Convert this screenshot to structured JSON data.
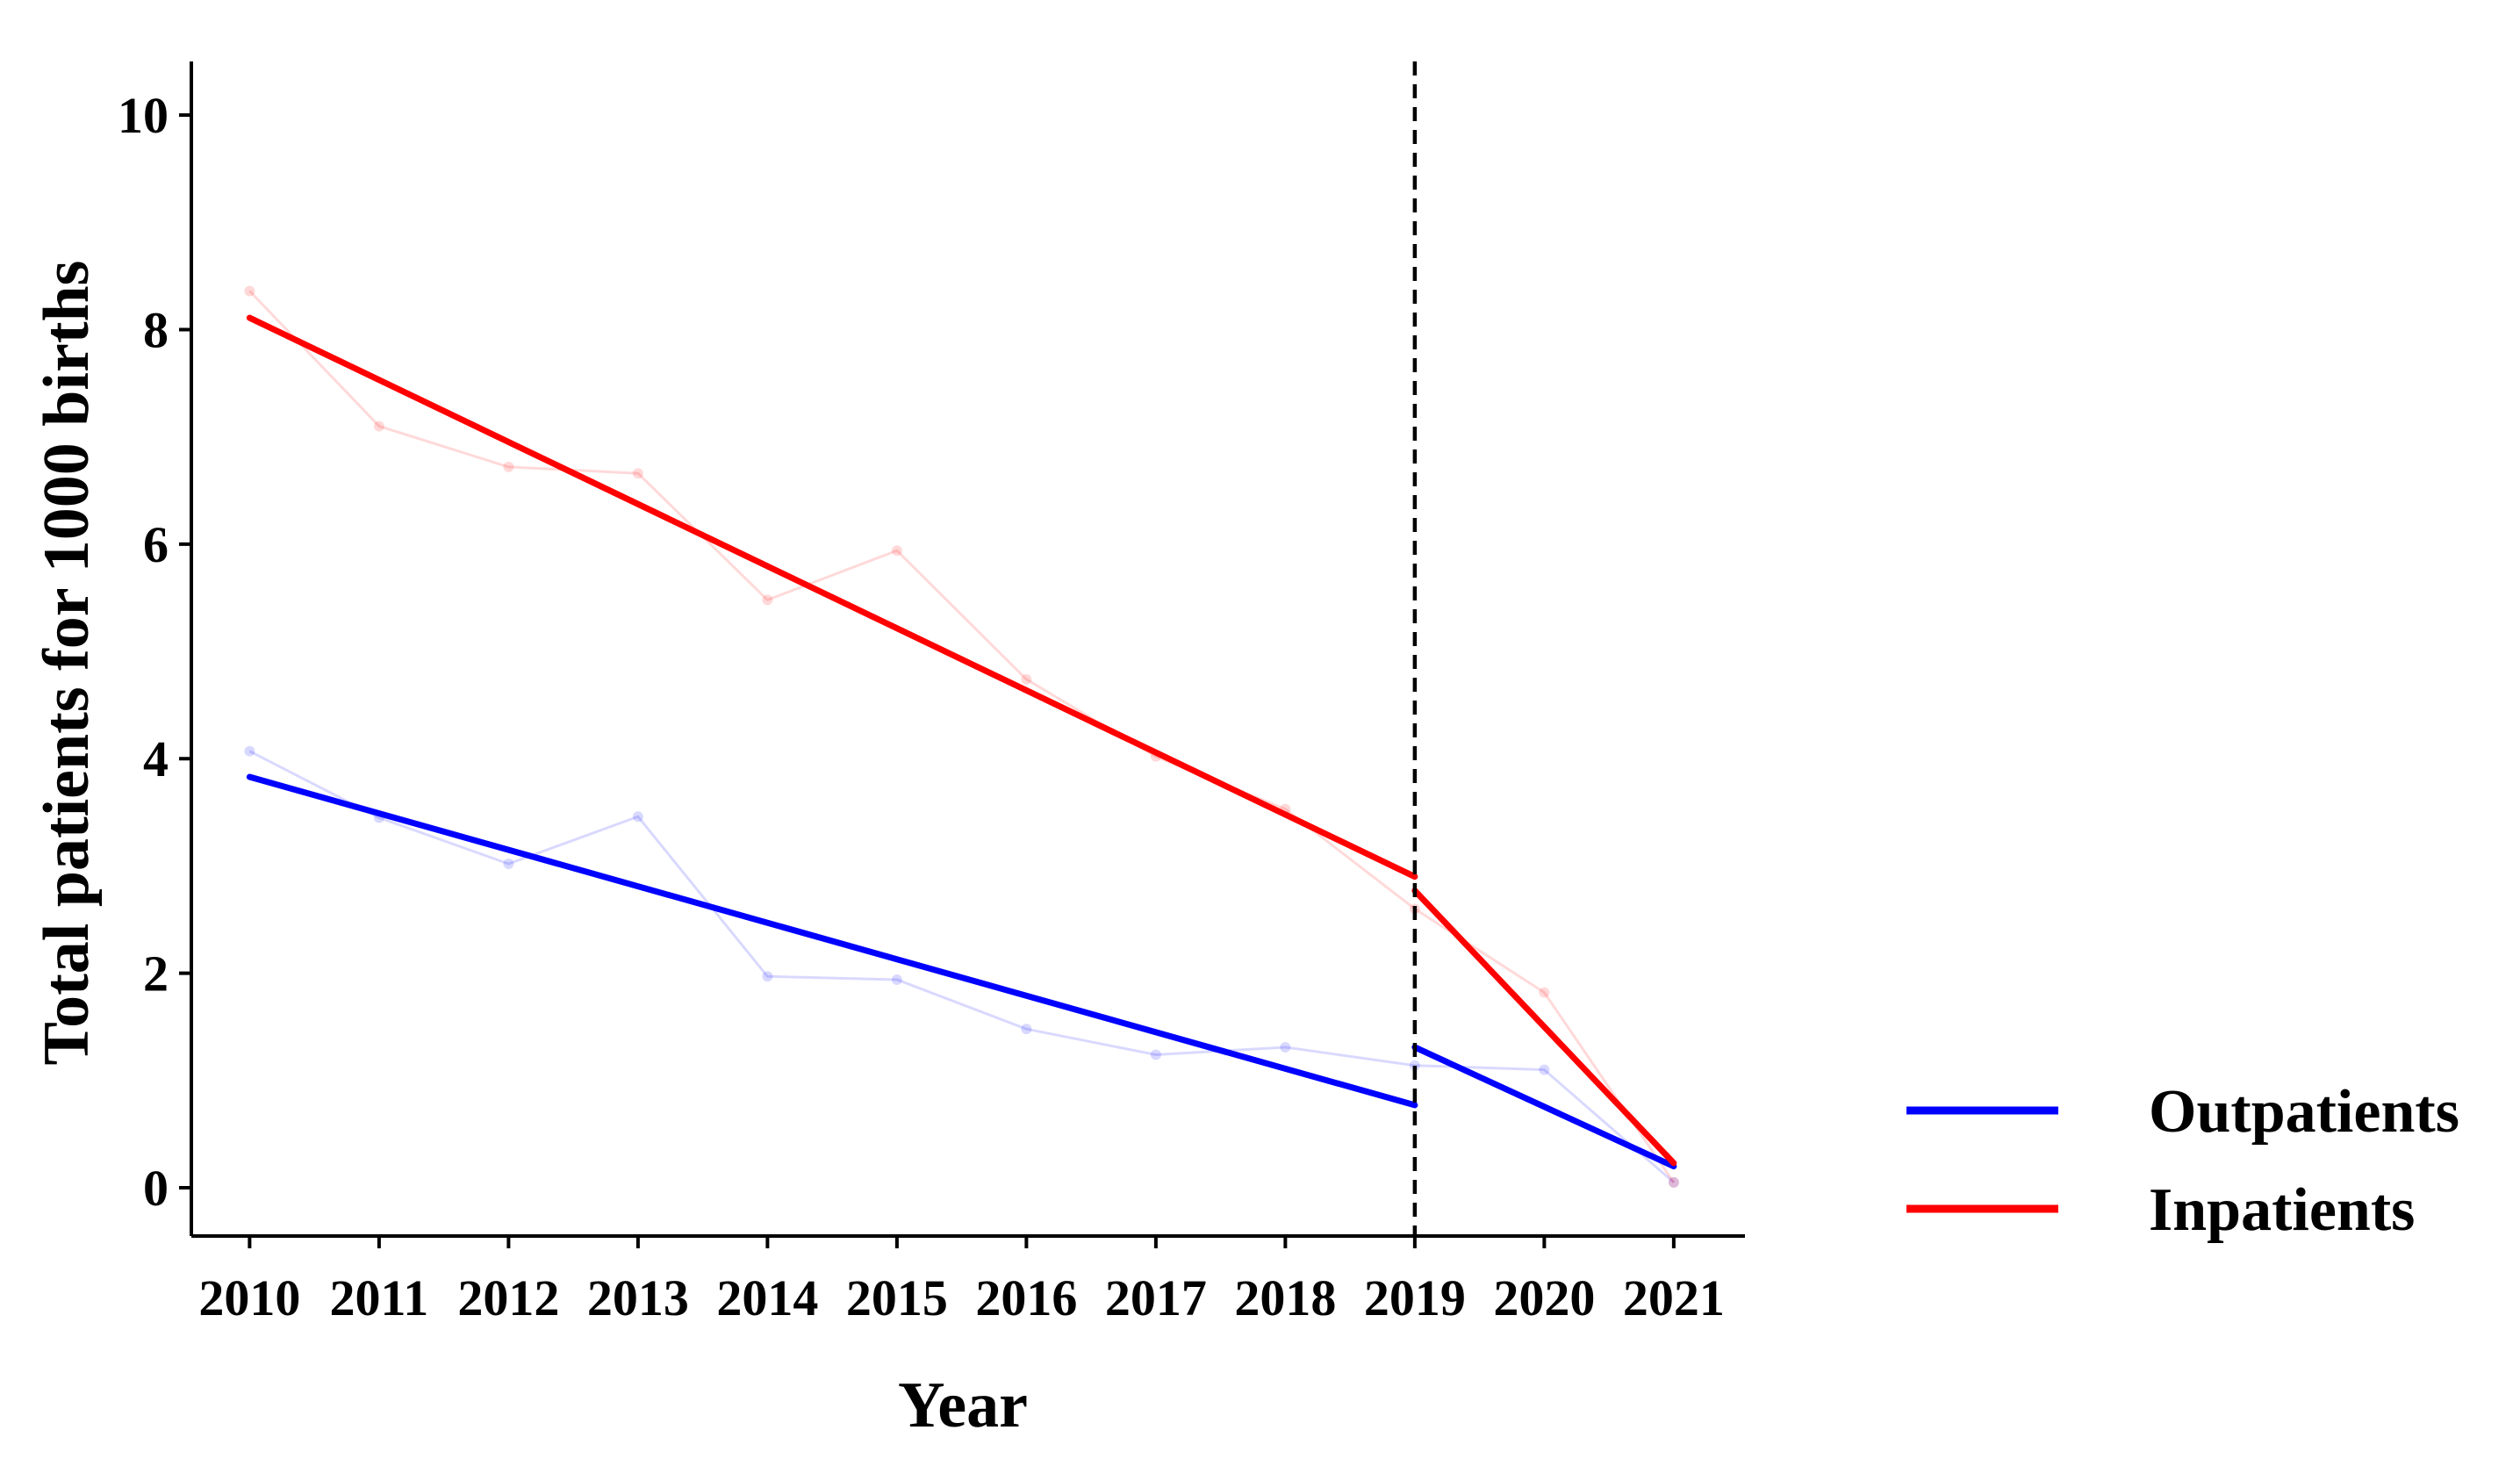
{
  "chart_data": {
    "type": "line",
    "xlabel": "Year",
    "ylabel": "Total patients for 1000 births",
    "x": [
      2010,
      2011,
      2012,
      2013,
      2014,
      2015,
      2016,
      2017,
      2018,
      2019,
      2020,
      2021
    ],
    "x_tick_labels": [
      "2010",
      "2011",
      "2012",
      "2013",
      "2014",
      "2015",
      "2016",
      "2017",
      "2018",
      "2019",
      "2020",
      "2021"
    ],
    "xlim": [
      2009.55,
      2021.55
    ],
    "ylim": [
      -0.45,
      10.5
    ],
    "y_ticks": [
      0,
      2,
      4,
      6,
      8,
      10
    ],
    "y_tick_labels": [
      "0",
      "2",
      "4",
      "6",
      "8",
      "10"
    ],
    "grid": false,
    "legend_position": "right",
    "intervention_line_x": 2019,
    "series": [
      {
        "name": "Outpatients",
        "color": "#0000ff",
        "observed": [
          4.07,
          3.45,
          3.02,
          3.46,
          1.97,
          1.94,
          1.48,
          1.24,
          1.31,
          1.14,
          1.1,
          0.05
        ],
        "trend_segments": [
          {
            "x": [
              2010,
              2019
            ],
            "y": [
              3.83,
              0.77
            ]
          },
          {
            "x": [
              2019,
              2021
            ],
            "y": [
              1.31,
              0.2
            ]
          }
        ]
      },
      {
        "name": "Inpatients",
        "color": "#ff0000",
        "observed": [
          8.36,
          7.1,
          6.72,
          6.66,
          5.48,
          5.94,
          4.74,
          4.02,
          3.53,
          2.6,
          1.82,
          0.05
        ],
        "trend_segments": [
          {
            "x": [
              2010,
              2019
            ],
            "y": [
              8.11,
              2.9
            ]
          },
          {
            "x": [
              2019,
              2021
            ],
            "y": [
              2.77,
              0.23
            ]
          }
        ]
      }
    ]
  }
}
